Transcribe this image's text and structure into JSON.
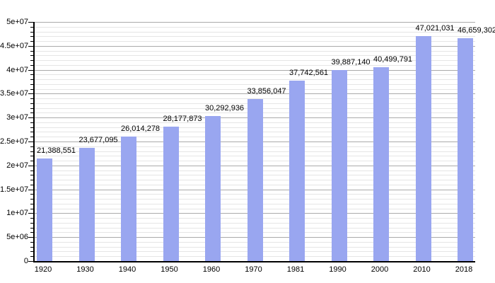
{
  "chart_data": {
    "type": "bar",
    "title": "",
    "xlabel": "",
    "ylabel": "",
    "categories": [
      "1920",
      "1930",
      "1940",
      "1950",
      "1960",
      "1970",
      "1981",
      "1990",
      "2000",
      "2010",
      "2018"
    ],
    "values": [
      21388551,
      23677095,
      26014278,
      28177873,
      30292936,
      33856047,
      37742561,
      39887140,
      40499791,
      47021031,
      46659302
    ],
    "value_labels": [
      "21,388,551",
      "23,677,095",
      "26,014,278",
      "28,177,873",
      "30,292,936",
      "33,856,047",
      "37,742,561",
      "39,887,140",
      "40,499,791",
      "47,021,031",
      "46,659,302"
    ],
    "ylim": [
      0,
      50000000
    ],
    "y_major_step": 5000000,
    "y_minor_step": 1000000,
    "y_tick_labels": [
      "0",
      "5e+06",
      "1e+07",
      "1.5e+07",
      "2e+07",
      "2.5e+07",
      "3e+07",
      "3.5e+07",
      "4e+07",
      "4.5e+07",
      "5e+07"
    ],
    "legend": "none",
    "grid": "horizontal major and minor gridlines",
    "colors": {
      "bar": "#99a6f0",
      "grid_major": "#aaaaaa",
      "grid_minor": "#e5e5e5",
      "axis": "#000000",
      "text": "#000000",
      "background": "#ffffff"
    }
  }
}
